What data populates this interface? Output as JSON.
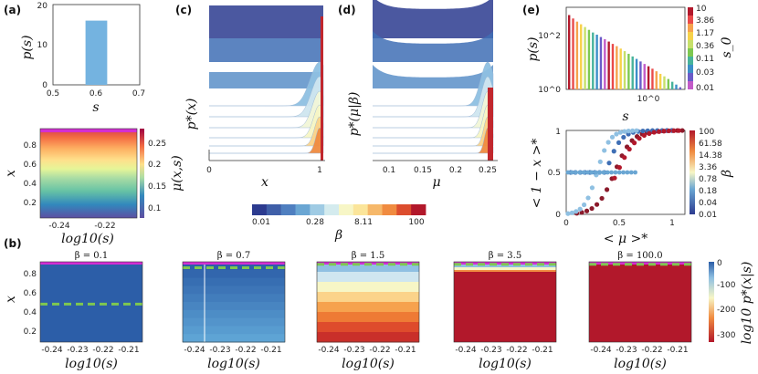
{
  "panel_labels": [
    "(a)",
    "(b)",
    "(c)",
    "(d)",
    "(e)"
  ],
  "colors": {
    "blue_dark": "#2c3b8f",
    "blue": "#3f6fb5",
    "light_blue": "#8fc0e2",
    "pale": "#f7f6c6",
    "orange": "#f08b40",
    "red": "#c1272d",
    "green": "#7ec850",
    "magenta": "#d32ed3"
  },
  "chart_data": [
    {
      "id": "a_top",
      "type": "bar",
      "xlabel": "s",
      "ylabel": "p(s)",
      "x_ticks": [
        "0.5",
        "0.6",
        "0.7"
      ],
      "y_ticks": [
        "0",
        "10",
        "20"
      ],
      "xlim": [
        0.5,
        0.7
      ],
      "ylim": [
        0,
        20
      ],
      "bins": [
        {
          "x0": 0.575,
          "x1": 0.625,
          "value": 16
        }
      ]
    },
    {
      "id": "a_bottom",
      "type": "heatmap",
      "xlabel": "log10(s)",
      "ylabel": "x",
      "colorbar_label": "μ(x,s)",
      "x_ticks": [
        "-0.24",
        "-0.22"
      ],
      "y_ticks": [
        "0.2",
        "0.4",
        "0.6",
        "0.8"
      ],
      "colorbar_ticks": [
        "0.1",
        "0.15",
        "0.2",
        "0.25"
      ],
      "colorbar_range": [
        0.07,
        0.27
      ]
    },
    {
      "id": "b",
      "type": "heatmap",
      "xlabel": "log10(s)",
      "ylabel": "x",
      "colorbar_label": "log10 p*(x|s)",
      "x_ticks": [
        "-0.24",
        "-0.23",
        "-0.22",
        "-0.21"
      ],
      "y_ticks": [
        "0.2",
        "0.4",
        "0.6",
        "0.8"
      ],
      "colorbar_ticks": [
        "0",
        "-100",
        "-200",
        "-300"
      ],
      "panels": [
        {
          "title": "β = 0.1",
          "dash_x": 0.5
        },
        {
          "title": "β = 0.7",
          "dash_x": 0.93
        },
        {
          "title": "β = 1.5",
          "dash_x": 0.97
        },
        {
          "title": "β = 3.5",
          "dash_x": 0.97
        },
        {
          "title": "β = 100.0",
          "dash_x": 0.97
        }
      ]
    },
    {
      "id": "c",
      "type": "line",
      "xlabel": "x",
      "ylabel": "p*(x)",
      "x_ticks": [
        "0",
        "1"
      ],
      "xlim": [
        0,
        1
      ]
    },
    {
      "id": "d",
      "type": "line",
      "xlabel": "μ",
      "ylabel": "p*(μ|β)",
      "x_ticks": [
        "0.1",
        "0.15",
        "0.2",
        "0.25"
      ],
      "xlim": [
        0.07,
        0.27
      ]
    },
    {
      "id": "beta_colorbar",
      "label": "β",
      "ticks": [
        "0.01",
        "0.28",
        "8.11",
        "100"
      ]
    },
    {
      "id": "e_top",
      "type": "bar",
      "scale": "log-log",
      "xlabel": "s",
      "ylabel": "p(s)",
      "x_ticks": [
        "10^0"
      ],
      "y_ticks": [
        "10^0",
        "10^2"
      ],
      "colorbar_label": "s_0",
      "colorbar_ticks": [
        "10",
        "3.86",
        "1.17",
        "0.36",
        "0.11",
        "0.03",
        "0.01"
      ],
      "bar_heights": [
        520,
        390,
        300,
        240,
        190,
        150,
        120,
        100,
        82,
        68,
        56,
        46,
        38,
        31,
        25,
        20,
        16,
        13,
        10.5,
        8.5,
        7,
        5.7,
        4.6,
        3.7,
        3,
        2.4,
        1.9,
        1.5,
        1.2
      ]
    },
    {
      "id": "e_bottom",
      "type": "scatter",
      "xlabel": "< μ >*",
      "ylabel": "< 1 − x >*",
      "x_ticks": [
        "0",
        "0.5",
        "1"
      ],
      "y_ticks": [
        "0",
        "0.5",
        "1"
      ],
      "xlim": [
        0,
        1.35
      ],
      "ylim": [
        0,
        1
      ],
      "colorbar_label": "β",
      "colorbar_ticks": [
        "100",
        "61.58",
        "14.38",
        "3.36",
        "0.78",
        "0.18",
        "0.04",
        "0.01"
      ]
    }
  ]
}
